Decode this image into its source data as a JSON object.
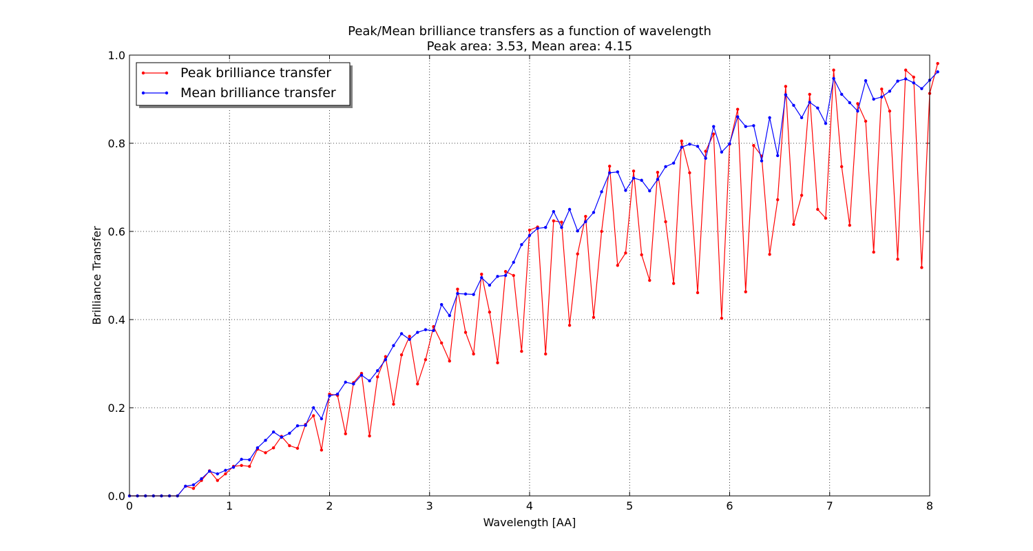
{
  "chart_data": {
    "type": "line",
    "title": "Peak/Mean brilliance transfers as a function of wavelength",
    "subtitle": "Peak area: 3.53, Mean area: 4.15",
    "xlabel": "Wavelength [AA]",
    "ylabel": "Brilliance Transfer",
    "xlim": [
      0,
      8
    ],
    "ylim": [
      0,
      1
    ],
    "x_ticks": [
      "0",
      "1",
      "2",
      "3",
      "4",
      "5",
      "6",
      "7",
      "8"
    ],
    "y_ticks": [
      "0.0",
      "0.2",
      "0.4",
      "0.6",
      "0.8",
      "1.0"
    ],
    "grid": true,
    "legend_position": "top-left",
    "x_step": 0.08,
    "series": [
      {
        "name": "Peak brilliance transfer",
        "color": "#ff0000",
        "values": [
          0,
          0,
          0,
          0,
          0,
          0,
          0,
          0.022,
          0.017,
          0.035,
          0.057,
          0.035,
          0.05,
          0.067,
          0.069,
          0.067,
          0.106,
          0.098,
          0.109,
          0.135,
          0.114,
          0.108,
          0.162,
          0.182,
          0.104,
          0.231,
          0.228,
          0.141,
          0.257,
          0.278,
          0.136,
          0.27,
          0.316,
          0.208,
          0.32,
          0.362,
          0.254,
          0.309,
          0.384,
          0.347,
          0.306,
          0.469,
          0.371,
          0.322,
          0.503,
          0.417,
          0.302,
          0.509,
          0.5,
          0.328,
          0.603,
          0.61,
          0.322,
          0.624,
          0.621,
          0.387,
          0.549,
          0.634,
          0.405,
          0.6,
          0.748,
          0.523,
          0.551,
          0.737,
          0.547,
          0.489,
          0.734,
          0.622,
          0.482,
          0.805,
          0.733,
          0.461,
          0.782,
          0.821,
          0.403,
          0.798,
          0.877,
          0.463,
          0.795,
          0.771,
          0.548,
          0.672,
          0.929,
          0.616,
          0.682,
          0.911,
          0.65,
          0.63,
          0.966,
          0.747,
          0.614,
          0.89,
          0.85,
          0.553,
          0.923,
          0.873,
          0.537,
          0.966,
          0.95,
          0.518,
          0.913,
          0.981
        ]
      },
      {
        "name": "Mean brilliance transfer",
        "color": "#0000ff",
        "values": [
          0,
          0,
          0,
          0,
          0,
          0,
          0,
          0.022,
          0.025,
          0.039,
          0.056,
          0.05,
          0.058,
          0.065,
          0.083,
          0.082,
          0.109,
          0.126,
          0.145,
          0.133,
          0.142,
          0.159,
          0.16,
          0.2,
          0.175,
          0.227,
          0.231,
          0.258,
          0.254,
          0.274,
          0.261,
          0.284,
          0.309,
          0.341,
          0.368,
          0.355,
          0.371,
          0.377,
          0.375,
          0.434,
          0.409,
          0.459,
          0.458,
          0.457,
          0.495,
          0.478,
          0.498,
          0.5,
          0.53,
          0.57,
          0.591,
          0.607,
          0.609,
          0.645,
          0.609,
          0.65,
          0.601,
          0.622,
          0.643,
          0.69,
          0.733,
          0.735,
          0.693,
          0.721,
          0.716,
          0.692,
          0.718,
          0.747,
          0.755,
          0.791,
          0.798,
          0.793,
          0.766,
          0.838,
          0.78,
          0.799,
          0.86,
          0.838,
          0.84,
          0.76,
          0.858,
          0.772,
          0.91,
          0.886,
          0.858,
          0.893,
          0.88,
          0.845,
          0.947,
          0.911,
          0.892,
          0.873,
          0.942,
          0.9,
          0.905,
          0.918,
          0.941,
          0.946,
          0.937,
          0.924,
          0.943,
          0.962
        ]
      }
    ]
  }
}
